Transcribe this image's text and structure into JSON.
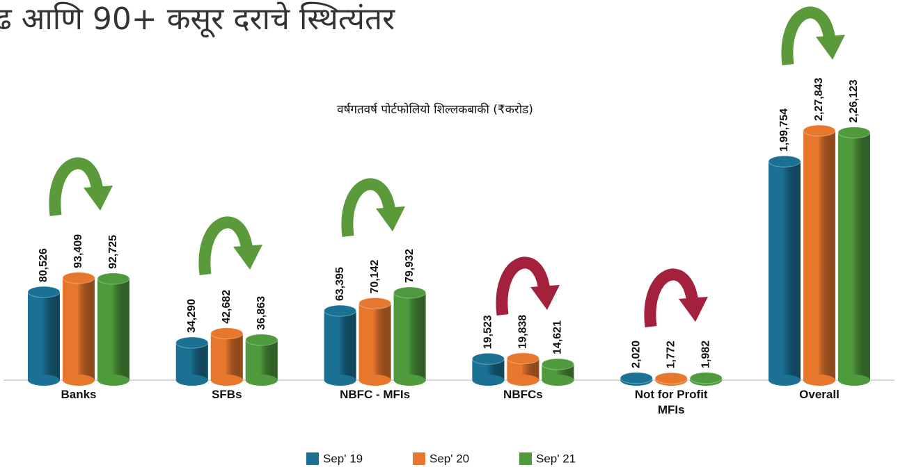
{
  "chart_data": {
    "type": "bar",
    "title": "ढ आणि 90+ कसूर दराचे स्थित्यंतर",
    "subtitle": "वर्षगतवर्ष पोर्टफोलियो शिल्लकबाकी (₹करोड)",
    "categories": [
      "Banks",
      "SFBs",
      "NBFC - MFIs",
      "NBFCs",
      "Not for Profit MFIs",
      "Overall"
    ],
    "series": [
      {
        "name": "Sep' 19",
        "color": "#1b7194",
        "values": [
          80526,
          34290,
          63395,
          19523,
          2020,
          199754
        ],
        "value_labels": [
          "80,526",
          "34,290",
          "63,395",
          "19,523",
          "2,020",
          "1,99,754"
        ]
      },
      {
        "name": "Sep' 20",
        "color": "#e8772e",
        "values": [
          93409,
          42682,
          70142,
          19838,
          1772,
          227843
        ],
        "value_labels": [
          "93,409",
          "42,682",
          "70,142",
          "19,838",
          "1,772",
          "2,27,843"
        ]
      },
      {
        "name": "Sep' 21",
        "color": "#4f9a3d",
        "values": [
          92725,
          36863,
          79932,
          14621,
          1982,
          226123
        ],
        "value_labels": [
          "92,725",
          "36,863",
          "79,932",
          "14,621",
          "1,982",
          "2,26,123"
        ]
      }
    ],
    "legend": "bottom"
  }
}
